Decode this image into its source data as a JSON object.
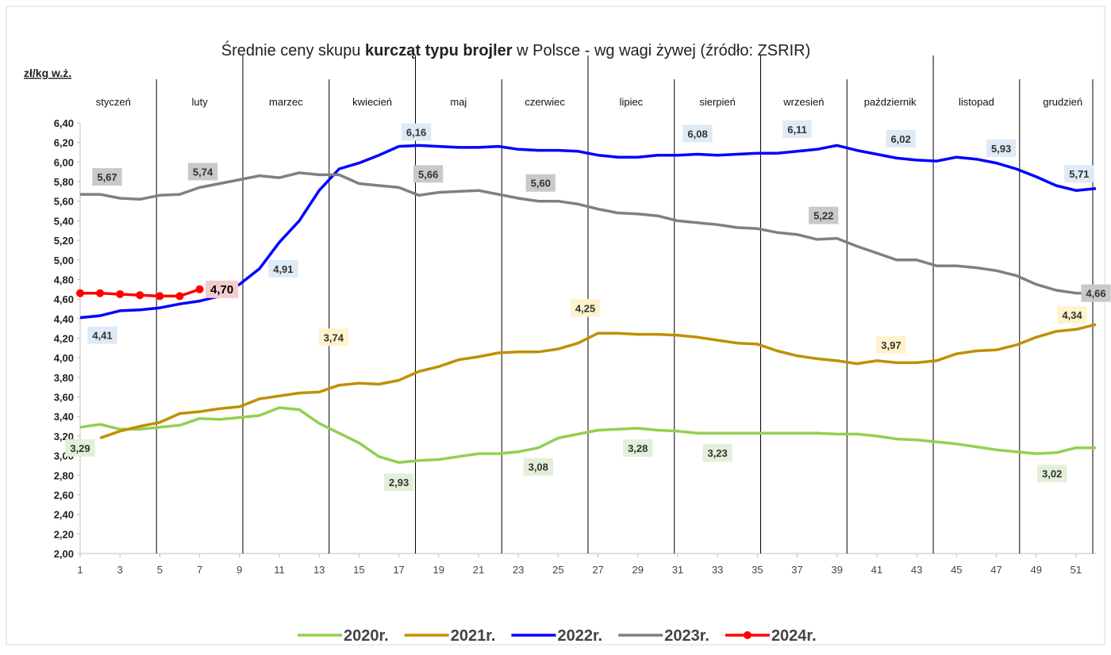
{
  "chart_data": {
    "type": "line",
    "title_parts": [
      "Średnie ceny skupu ",
      "kurcząt typu brojler",
      " w Polsce - wg wagi żywej (źródło: ZSRIR)"
    ],
    "y_label": "zł/kg w.ż.",
    "months": [
      "styczeń",
      "luty",
      "marzec",
      "kwiecień",
      "maj",
      "czerwiec",
      "lipiec",
      "sierpień",
      "wrzesień",
      "październik",
      "listopad",
      "grudzień"
    ],
    "x": [
      1,
      2,
      3,
      4,
      5,
      6,
      7,
      8,
      9,
      10,
      11,
      12,
      13,
      14,
      15,
      16,
      17,
      18,
      19,
      20,
      21,
      22,
      23,
      24,
      25,
      26,
      27,
      28,
      29,
      30,
      31,
      32,
      33,
      34,
      35,
      36,
      37,
      38,
      39,
      40,
      41,
      42,
      43,
      44,
      45,
      46,
      47,
      48,
      49,
      50,
      51,
      52
    ],
    "xlim": [
      1,
      52
    ],
    "xticks": [
      1,
      3,
      5,
      7,
      9,
      11,
      13,
      15,
      17,
      19,
      21,
      23,
      25,
      27,
      29,
      31,
      33,
      35,
      37,
      39,
      41,
      43,
      45,
      47,
      49,
      51
    ],
    "ylim": [
      2,
      6.4
    ],
    "yticks": [
      {
        "value": 2,
        "label": "2,00"
      },
      {
        "value": 2.2,
        "label": "2,20"
      },
      {
        "value": 2.4,
        "label": "2,40"
      },
      {
        "value": 2.6,
        "label": "2,60"
      },
      {
        "value": 2.8,
        "label": "2,80"
      },
      {
        "value": 3,
        "label": "3,00"
      },
      {
        "value": 3.2,
        "label": "3,20"
      },
      {
        "value": 3.4,
        "label": "3,40"
      },
      {
        "value": 3.6,
        "label": "3,60"
      },
      {
        "value": 3.8,
        "label": "3,80"
      },
      {
        "value": 4,
        "label": "4,00"
      },
      {
        "value": 4.2,
        "label": "4,20"
      },
      {
        "value": 4.4,
        "label": "4,40"
      },
      {
        "value": 4.6,
        "label": "4,60"
      },
      {
        "value": 4.8,
        "label": "4,80"
      },
      {
        "value": 5,
        "label": "5,00"
      },
      {
        "value": 5.2,
        "label": "5,20"
      },
      {
        "value": 5.4,
        "label": "5,40"
      },
      {
        "value": 5.6,
        "label": "5,60"
      },
      {
        "value": 5.8,
        "label": "5,80"
      },
      {
        "value": 6,
        "label": "6,00"
      },
      {
        "value": 6.2,
        "label": "6,20"
      },
      {
        "value": 6.4,
        "label": "6,40"
      }
    ],
    "grid": false,
    "legend": "bottom",
    "series": [
      {
        "name": "2020r.",
        "color": "#92d050",
        "label_bg": "#e2efd9",
        "values": [
          3.29,
          3.32,
          3.27,
          3.27,
          3.29,
          3.31,
          3.38,
          3.37,
          3.39,
          3.41,
          3.49,
          3.47,
          3.33,
          3.23,
          3.13,
          2.99,
          2.93,
          2.95,
          2.96,
          2.99,
          3.02,
          3.02,
          3.04,
          3.08,
          3.18,
          3.22,
          3.26,
          3.27,
          3.28,
          3.26,
          3.25,
          3.23,
          3.23,
          3.23,
          3.23,
          3.23,
          3.23,
          3.23,
          3.22,
          3.22,
          3.2,
          3.17,
          3.16,
          3.14,
          3.12,
          3.09,
          3.06,
          3.04,
          3.02,
          3.03,
          3.08,
          3.08
        ],
        "value_labels": [
          "3,29",
          null,
          null,
          null,
          null,
          null,
          null,
          null,
          null,
          null,
          null,
          null,
          null,
          null,
          null,
          null,
          "2,93",
          null,
          null,
          null,
          null,
          null,
          null,
          "3,08",
          null,
          null,
          null,
          null,
          "3,28",
          null,
          null,
          null,
          "3,23",
          null,
          null,
          null,
          null,
          null,
          null,
          null,
          null,
          null,
          null,
          null,
          null,
          null,
          null,
          null,
          "3,02",
          null,
          null,
          null
        ]
      },
      {
        "name": "2021r.",
        "color": "#bf9000",
        "label_bg": "#fff2cc",
        "values": [
          null,
          3.18,
          3.25,
          3.3,
          3.34,
          3.43,
          3.45,
          3.48,
          3.5,
          3.58,
          3.61,
          3.64,
          3.65,
          3.72,
          3.74,
          3.73,
          3.77,
          3.86,
          3.91,
          3.98,
          4.01,
          4.05,
          4.06,
          4.06,
          4.09,
          4.15,
          4.25,
          4.25,
          4.24,
          4.24,
          4.23,
          4.21,
          4.18,
          4.15,
          4.14,
          4.07,
          4.02,
          3.99,
          3.97,
          3.94,
          3.97,
          3.95,
          3.95,
          3.97,
          4.04,
          4.07,
          4.08,
          4.13,
          4.21,
          4.27,
          4.29,
          4.34
        ],
        "value_labels": [
          null,
          null,
          null,
          null,
          null,
          null,
          null,
          null,
          null,
          null,
          null,
          null,
          null,
          null,
          "3,74",
          null,
          null,
          null,
          null,
          null,
          null,
          null,
          null,
          null,
          null,
          null,
          "4,25",
          null,
          null,
          null,
          null,
          null,
          null,
          null,
          null,
          null,
          null,
          null,
          null,
          null,
          "3,97",
          null,
          null,
          null,
          null,
          null,
          null,
          null,
          null,
          null,
          null,
          "4,34"
        ]
      },
      {
        "name": "2022r.",
        "color": "#0000ff",
        "label_bg": "#deeaf6",
        "values": [
          4.41,
          4.43,
          4.48,
          4.49,
          4.51,
          4.55,
          4.58,
          4.63,
          4.75,
          4.91,
          5.18,
          5.4,
          5.71,
          5.93,
          5.99,
          6.07,
          6.16,
          6.17,
          6.16,
          6.15,
          6.15,
          6.16,
          6.13,
          6.12,
          6.12,
          6.11,
          6.07,
          6.05,
          6.05,
          6.07,
          6.07,
          6.08,
          6.07,
          6.08,
          6.09,
          6.09,
          6.11,
          6.13,
          6.17,
          6.12,
          6.08,
          6.04,
          6.02,
          6.01,
          6.05,
          6.03,
          5.99,
          5.93,
          5.85,
          5.76,
          5.71,
          5.73
        ],
        "value_labels": [
          "4,41",
          null,
          null,
          null,
          null,
          null,
          null,
          null,
          null,
          "4,91",
          null,
          null,
          null,
          null,
          null,
          null,
          "6,16",
          null,
          null,
          null,
          null,
          null,
          null,
          null,
          null,
          null,
          null,
          null,
          null,
          null,
          null,
          "6,08",
          null,
          null,
          null,
          null,
          "6,11",
          null,
          null,
          null,
          null,
          null,
          "6,02",
          null,
          null,
          null,
          null,
          "5,93",
          null,
          null,
          "5,71",
          null
        ]
      },
      {
        "name": "2023r.",
        "color": "#808080",
        "label_bg": "#c9c9c9",
        "values": [
          5.67,
          5.67,
          5.63,
          5.62,
          5.66,
          5.67,
          5.74,
          5.78,
          5.82,
          5.86,
          5.84,
          5.89,
          5.87,
          5.87,
          5.78,
          5.76,
          5.74,
          5.66,
          5.69,
          5.7,
          5.71,
          5.67,
          5.63,
          5.6,
          5.6,
          5.57,
          5.52,
          5.48,
          5.47,
          5.45,
          5.4,
          5.38,
          5.36,
          5.33,
          5.32,
          5.28,
          5.26,
          5.21,
          5.22,
          5.14,
          5.07,
          5,
          5,
          4.94,
          4.94,
          4.92,
          4.89,
          4.84,
          4.75,
          4.69,
          4.66,
          4.66
        ],
        "value_labels": [
          "5,67",
          null,
          null,
          null,
          null,
          null,
          "5,74",
          null,
          null,
          null,
          null,
          null,
          null,
          null,
          null,
          null,
          null,
          "5,66",
          null,
          null,
          null,
          null,
          null,
          "5,60",
          null,
          null,
          null,
          null,
          null,
          null,
          null,
          null,
          null,
          null,
          null,
          null,
          null,
          null,
          "5,22",
          null,
          null,
          null,
          null,
          null,
          null,
          null,
          null,
          null,
          null,
          null,
          null,
          "4,66"
        ]
      },
      {
        "name": "2024r.",
        "color": "#ff0000",
        "label_bg": "#f4cccc",
        "markers": true,
        "values": [
          4.66,
          4.66,
          4.65,
          4.64,
          4.63,
          4.63,
          4.7,
          null,
          null,
          null,
          null,
          null,
          null,
          null,
          null,
          null,
          null,
          null,
          null,
          null,
          null,
          null,
          null,
          null,
          null,
          null,
          null,
          null,
          null,
          null,
          null,
          null,
          null,
          null,
          null,
          null,
          null,
          null,
          null,
          null,
          null,
          null,
          null,
          null,
          null,
          null,
          null,
          null,
          null,
          null,
          null,
          null
        ],
        "value_labels": [
          null,
          null,
          null,
          null,
          null,
          null,
          "4,70",
          null,
          null,
          null,
          null,
          null,
          null,
          null,
          null,
          null,
          null,
          null,
          null,
          null,
          null,
          null,
          null,
          null,
          null,
          null,
          null,
          null,
          null,
          null,
          null,
          null,
          null,
          null,
          null,
          null,
          null,
          null,
          null,
          null,
          null,
          null,
          null,
          null,
          null,
          null,
          null,
          null,
          null,
          null,
          null,
          null
        ]
      }
    ]
  }
}
